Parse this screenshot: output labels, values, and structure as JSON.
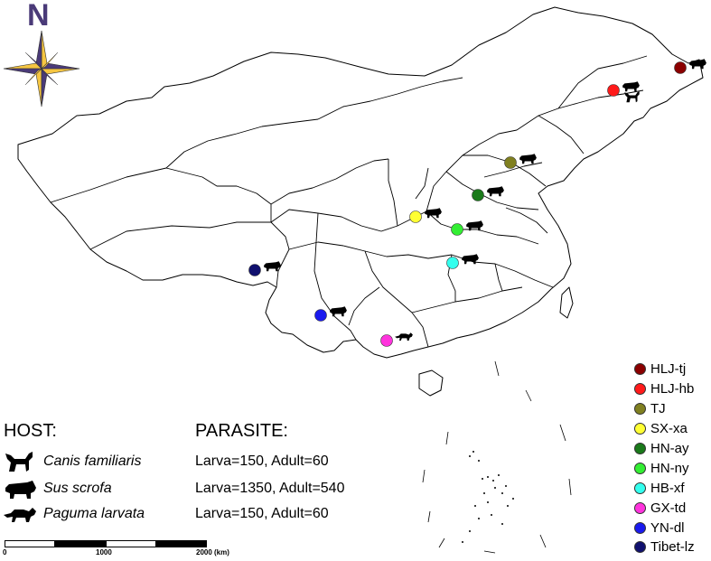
{
  "north_label": "N",
  "sites": [
    {
      "id": "HLJ-tj",
      "label": "HLJ-tj",
      "color": "#8b0000",
      "hosts": [
        "pig"
      ]
    },
    {
      "id": "HLJ-hb",
      "label": "HLJ-hb",
      "color": "#ff1a1a",
      "hosts": [
        "pig",
        "dog"
      ]
    },
    {
      "id": "TJ",
      "label": "TJ",
      "color": "#808020",
      "hosts": [
        "pig"
      ]
    },
    {
      "id": "SX-xa",
      "label": "SX-xa",
      "color": "#ffff33",
      "hosts": [
        "pig"
      ]
    },
    {
      "id": "HN-ay",
      "label": "HN-ay",
      "color": "#1a7a1a",
      "hosts": [
        "pig"
      ]
    },
    {
      "id": "HN-ny",
      "label": "HN-ny",
      "color": "#33ee33",
      "hosts": [
        "pig"
      ]
    },
    {
      "id": "HB-xf",
      "label": "HB-xf",
      "color": "#33ffee",
      "hosts": [
        "pig"
      ]
    },
    {
      "id": "GX-td",
      "label": "GX-td",
      "color": "#ff33dd",
      "hosts": [
        "civet"
      ]
    },
    {
      "id": "YN-dl",
      "label": "YN-dl",
      "color": "#1a1aee",
      "hosts": [
        "pig"
      ]
    },
    {
      "id": "Tibet-lz",
      "label": "Tibet-lz",
      "color": "#10106e",
      "hosts": [
        "pig"
      ]
    }
  ],
  "hosts_table": {
    "host_heading": "HOST:",
    "parasite_heading": "PARASITE:",
    "rows": [
      {
        "icon": "dog-icon",
        "name": "Canis familiaris",
        "values": "Larva=150, Adult=60"
      },
      {
        "icon": "pig-icon",
        "name": "Sus scrofa",
        "values": "Larva=1350, Adult=540"
      },
      {
        "icon": "civet-icon",
        "name": "Paguma larvata",
        "values": "Larva=150, Adult=60"
      }
    ]
  },
  "scale_bar": {
    "labels": [
      "0",
      "1000",
      "2000 (km)"
    ]
  }
}
